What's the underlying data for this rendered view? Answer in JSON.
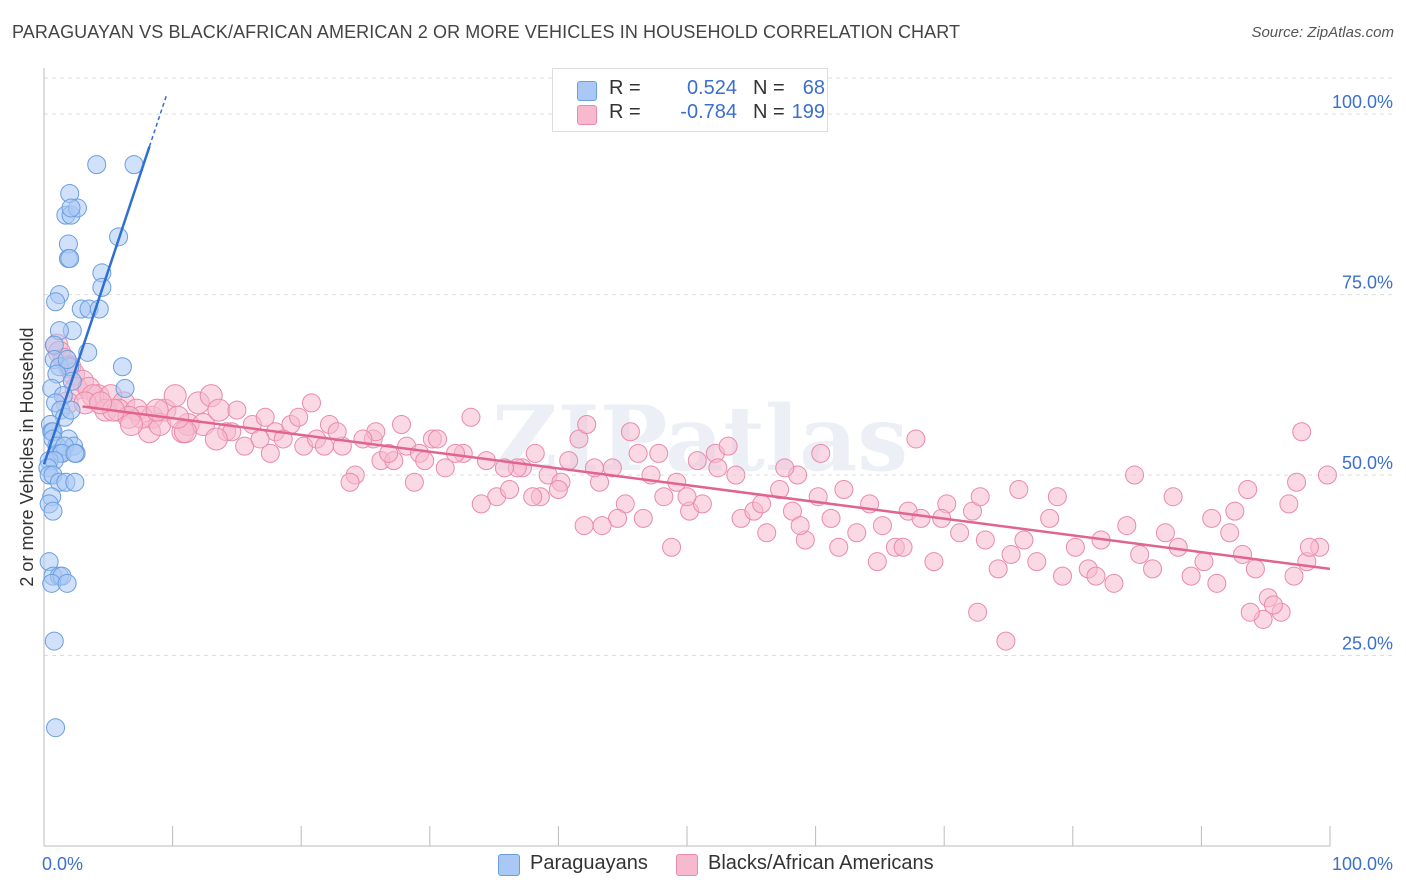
{
  "header": {
    "title": "PARAGUAYAN VS BLACK/AFRICAN AMERICAN 2 OR MORE VEHICLES IN HOUSEHOLD CORRELATION CHART",
    "source": "Source: ZipAtlas.com"
  },
  "legend_stats": {
    "r_label": "R =",
    "n_label": "N =",
    "paraguayans": {
      "r": "0.524",
      "n": "68"
    },
    "blacks": {
      "r": "-0.784",
      "n": "199"
    }
  },
  "bottom_legend": {
    "paraguayans": "Paraguayans",
    "blacks": "Blacks/African Americans"
  },
  "watermark": "ZIPatlas",
  "colors": {
    "blue_fill": "#a9c8f4",
    "blue_stroke": "#6a9ee0",
    "blue_line": "#2f6fd1",
    "pink_fill": "#f6b9cd",
    "pink_stroke": "#e98aac",
    "pink_line": "#e0648f",
    "axis_text": "#3b6fce",
    "grid": "#dddddd"
  },
  "chart_data": {
    "type": "scatter",
    "title": "PARAGUAYAN VS BLACK/AFRICAN AMERICAN 2 OR MORE VEHICLES IN HOUSEHOLD CORRELATION CHART",
    "xlabel": "",
    "ylabel": "2 or more Vehicles in Household",
    "xlim": [
      0,
      100
    ],
    "ylim": [
      0,
      105
    ],
    "x_tick_labels": [
      "0.0%",
      "100.0%"
    ],
    "y_ticks": [
      25,
      50,
      75,
      100
    ],
    "y_tick_labels": [
      "25.0%",
      "50.0%",
      "75.0%",
      "100.0%"
    ],
    "grid": true,
    "legend_position": "top-center",
    "series": [
      {
        "name": "Paraguayans",
        "r": 0.524,
        "n": 68,
        "trend": {
          "x": [
            0.0,
            8.2
          ],
          "y": [
            51.5,
            95.5
          ]
        },
        "points": [
          [
            4.1,
            93
          ],
          [
            7.0,
            93
          ],
          [
            2.0,
            89
          ],
          [
            1.7,
            86
          ],
          [
            2.1,
            86
          ],
          [
            2.6,
            87
          ],
          [
            5.8,
            83
          ],
          [
            1.9,
            82
          ],
          [
            1.9,
            80
          ],
          [
            2.0,
            80
          ],
          [
            4.5,
            78
          ],
          [
            4.5,
            76
          ],
          [
            1.2,
            75
          ],
          [
            0.9,
            74
          ],
          [
            2.9,
            73
          ],
          [
            3.5,
            73
          ],
          [
            4.3,
            73
          ],
          [
            2.2,
            70
          ],
          [
            1.2,
            70
          ],
          [
            0.8,
            68
          ],
          [
            3.4,
            67
          ],
          [
            0.8,
            66
          ],
          [
            1.2,
            65
          ],
          [
            2.0,
            65
          ],
          [
            1.8,
            66
          ],
          [
            6.1,
            65
          ],
          [
            1.0,
            64
          ],
          [
            2.2,
            63
          ],
          [
            0.6,
            62
          ],
          [
            6.3,
            62
          ],
          [
            1.5,
            61
          ],
          [
            0.9,
            60
          ],
          [
            1.3,
            59
          ],
          [
            1.6,
            58
          ],
          [
            2.1,
            59
          ],
          [
            0.5,
            57
          ],
          [
            0.6,
            56
          ],
          [
            0.7,
            56
          ],
          [
            1.9,
            55
          ],
          [
            2.3,
            54
          ],
          [
            0.7,
            55
          ],
          [
            1.0,
            54
          ],
          [
            1.1,
            53
          ],
          [
            1.3,
            53
          ],
          [
            1.6,
            54
          ],
          [
            1.4,
            53
          ],
          [
            2.5,
            53
          ],
          [
            2.4,
            53
          ],
          [
            0.4,
            52
          ],
          [
            0.8,
            52
          ],
          [
            0.3,
            51
          ],
          [
            0.4,
            50
          ],
          [
            0.7,
            50
          ],
          [
            1.2,
            49
          ],
          [
            1.7,
            49
          ],
          [
            2.4,
            49
          ],
          [
            0.6,
            47
          ],
          [
            0.4,
            46
          ],
          [
            0.7,
            45
          ],
          [
            0.4,
            38
          ],
          [
            0.7,
            36
          ],
          [
            1.2,
            36
          ],
          [
            1.4,
            36
          ],
          [
            0.6,
            35
          ],
          [
            1.8,
            35
          ],
          [
            0.8,
            27
          ],
          [
            0.9,
            15
          ],
          [
            2.1,
            87
          ]
        ]
      },
      {
        "name": "Blacks/African Americans",
        "r": -0.784,
        "n": 199,
        "trend": {
          "x": [
            3.0,
            100.0
          ],
          "y": [
            59.5,
            37.0
          ]
        },
        "points": [
          [
            1.0,
            68
          ],
          [
            1.2,
            67
          ],
          [
            1.6,
            66
          ],
          [
            2.0,
            65
          ],
          [
            2.3,
            64
          ],
          [
            3.0,
            63
          ],
          [
            2.5,
            62
          ],
          [
            3.5,
            62
          ],
          [
            4.2,
            61
          ],
          [
            1.8,
            60
          ],
          [
            3.8,
            61
          ],
          [
            5.2,
            61
          ],
          [
            6.2,
            60
          ],
          [
            4.8,
            59
          ],
          [
            5.8,
            59
          ],
          [
            7.2,
            59
          ],
          [
            8.4,
            58
          ],
          [
            9.4,
            59
          ],
          [
            10.2,
            61
          ],
          [
            12.0,
            60
          ],
          [
            13.0,
            61
          ],
          [
            11.2,
            57
          ],
          [
            8.2,
            56
          ],
          [
            10.8,
            56
          ],
          [
            12.4,
            57
          ],
          [
            14.2,
            56
          ],
          [
            13.6,
            59
          ],
          [
            15.0,
            59
          ],
          [
            16.2,
            57
          ],
          [
            17.2,
            58
          ],
          [
            15.6,
            54
          ],
          [
            18.0,
            56
          ],
          [
            16.8,
            55
          ],
          [
            19.2,
            57
          ],
          [
            20.2,
            54
          ],
          [
            21.2,
            55
          ],
          [
            19.8,
            58
          ],
          [
            22.2,
            57
          ],
          [
            20.8,
            60
          ],
          [
            23.2,
            54
          ],
          [
            24.2,
            50
          ],
          [
            25.6,
            55
          ],
          [
            26.2,
            52
          ],
          [
            23.8,
            49
          ],
          [
            27.2,
            52
          ],
          [
            28.2,
            54
          ],
          [
            27.8,
            57
          ],
          [
            29.2,
            53
          ],
          [
            30.2,
            55
          ],
          [
            31.2,
            51
          ],
          [
            28.8,
            49
          ],
          [
            32.6,
            53
          ],
          [
            33.2,
            58
          ],
          [
            34.4,
            52
          ],
          [
            35.2,
            47
          ],
          [
            34.0,
            46
          ],
          [
            36.2,
            48
          ],
          [
            37.2,
            51
          ],
          [
            38.2,
            53
          ],
          [
            39.2,
            50
          ],
          [
            36.8,
            51
          ],
          [
            40.2,
            49
          ],
          [
            41.6,
            55
          ],
          [
            42.2,
            57
          ],
          [
            43.2,
            49
          ],
          [
            44.2,
            51
          ],
          [
            40.8,
            52
          ],
          [
            45.2,
            46
          ],
          [
            46.2,
            53
          ],
          [
            47.2,
            50
          ],
          [
            48.2,
            47
          ],
          [
            49.2,
            49
          ],
          [
            50.2,
            45
          ],
          [
            51.2,
            46
          ],
          [
            52.2,
            53
          ],
          [
            53.2,
            54
          ],
          [
            54.2,
            44
          ],
          [
            55.2,
            45
          ],
          [
            56.2,
            42
          ],
          [
            57.2,
            48
          ],
          [
            58.2,
            45
          ],
          [
            59.2,
            41
          ],
          [
            60.2,
            47
          ],
          [
            61.2,
            44
          ],
          [
            62.2,
            48
          ],
          [
            63.2,
            42
          ],
          [
            64.2,
            46
          ],
          [
            65.2,
            43
          ],
          [
            66.2,
            40
          ],
          [
            67.2,
            45
          ],
          [
            68.2,
            44
          ],
          [
            69.2,
            38
          ],
          [
            70.2,
            46
          ],
          [
            71.2,
            42
          ],
          [
            72.2,
            45
          ],
          [
            73.2,
            41
          ],
          [
            74.2,
            37
          ],
          [
            75.2,
            39
          ],
          [
            76.2,
            41
          ],
          [
            77.2,
            38
          ],
          [
            78.2,
            44
          ],
          [
            79.2,
            36
          ],
          [
            80.2,
            40
          ],
          [
            81.2,
            37
          ],
          [
            82.2,
            41
          ],
          [
            83.2,
            35
          ],
          [
            84.2,
            43
          ],
          [
            85.2,
            39
          ],
          [
            86.2,
            37
          ],
          [
            87.2,
            42
          ],
          [
            88.2,
            40
          ],
          [
            89.2,
            36
          ],
          [
            90.2,
            38
          ],
          [
            91.2,
            35
          ],
          [
            92.2,
            42
          ],
          [
            93.2,
            39
          ],
          [
            94.2,
            37
          ],
          [
            95.2,
            33
          ],
          [
            96.2,
            31
          ],
          [
            97.2,
            36
          ],
          [
            98.2,
            38
          ],
          [
            99.2,
            40
          ],
          [
            97.8,
            56
          ],
          [
            99.8,
            50
          ],
          [
            96.8,
            46
          ],
          [
            97.4,
            49
          ],
          [
            95.6,
            32
          ],
          [
            94.8,
            30
          ],
          [
            93.8,
            31
          ],
          [
            98.4,
            40
          ],
          [
            74.8,
            27
          ],
          [
            72.6,
            31
          ],
          [
            67.8,
            55
          ],
          [
            60.4,
            53
          ],
          [
            58.6,
            50
          ],
          [
            57.6,
            51
          ],
          [
            52.4,
            51
          ],
          [
            50.8,
            52
          ],
          [
            47.8,
            53
          ],
          [
            45.6,
            56
          ],
          [
            42.8,
            51
          ],
          [
            40.0,
            48
          ],
          [
            38.6,
            47
          ],
          [
            44.6,
            44
          ],
          [
            48.8,
            40
          ],
          [
            43.4,
            43
          ],
          [
            38.0,
            47
          ],
          [
            35.8,
            51
          ],
          [
            32.0,
            53
          ],
          [
            30.6,
            55
          ],
          [
            29.6,
            52
          ],
          [
            26.8,
            53
          ],
          [
            25.8,
            56
          ],
          [
            24.8,
            55
          ],
          [
            22.8,
            56
          ],
          [
            21.8,
            54
          ],
          [
            18.6,
            55
          ],
          [
            17.6,
            53
          ],
          [
            14.6,
            56
          ],
          [
            13.4,
            55
          ],
          [
            11.0,
            56
          ],
          [
            9.0,
            57
          ],
          [
            7.6,
            58
          ],
          [
            6.6,
            58
          ],
          [
            5.4,
            59
          ],
          [
            3.2,
            60
          ],
          [
            4.4,
            60
          ],
          [
            6.8,
            57
          ],
          [
            8.8,
            59
          ],
          [
            10.4,
            58
          ],
          [
            42.0,
            43
          ],
          [
            46.6,
            44
          ],
          [
            50.0,
            47
          ],
          [
            53.8,
            50
          ],
          [
            55.8,
            46
          ],
          [
            58.8,
            43
          ],
          [
            61.8,
            40
          ],
          [
            64.8,
            38
          ],
          [
            66.8,
            40
          ],
          [
            69.8,
            44
          ],
          [
            72.8,
            47
          ],
          [
            75.8,
            48
          ],
          [
            78.8,
            47
          ],
          [
            81.8,
            36
          ],
          [
            84.8,
            50
          ],
          [
            87.8,
            47
          ],
          [
            90.8,
            44
          ],
          [
            93.6,
            48
          ],
          [
            92.6,
            45
          ]
        ]
      }
    ]
  }
}
